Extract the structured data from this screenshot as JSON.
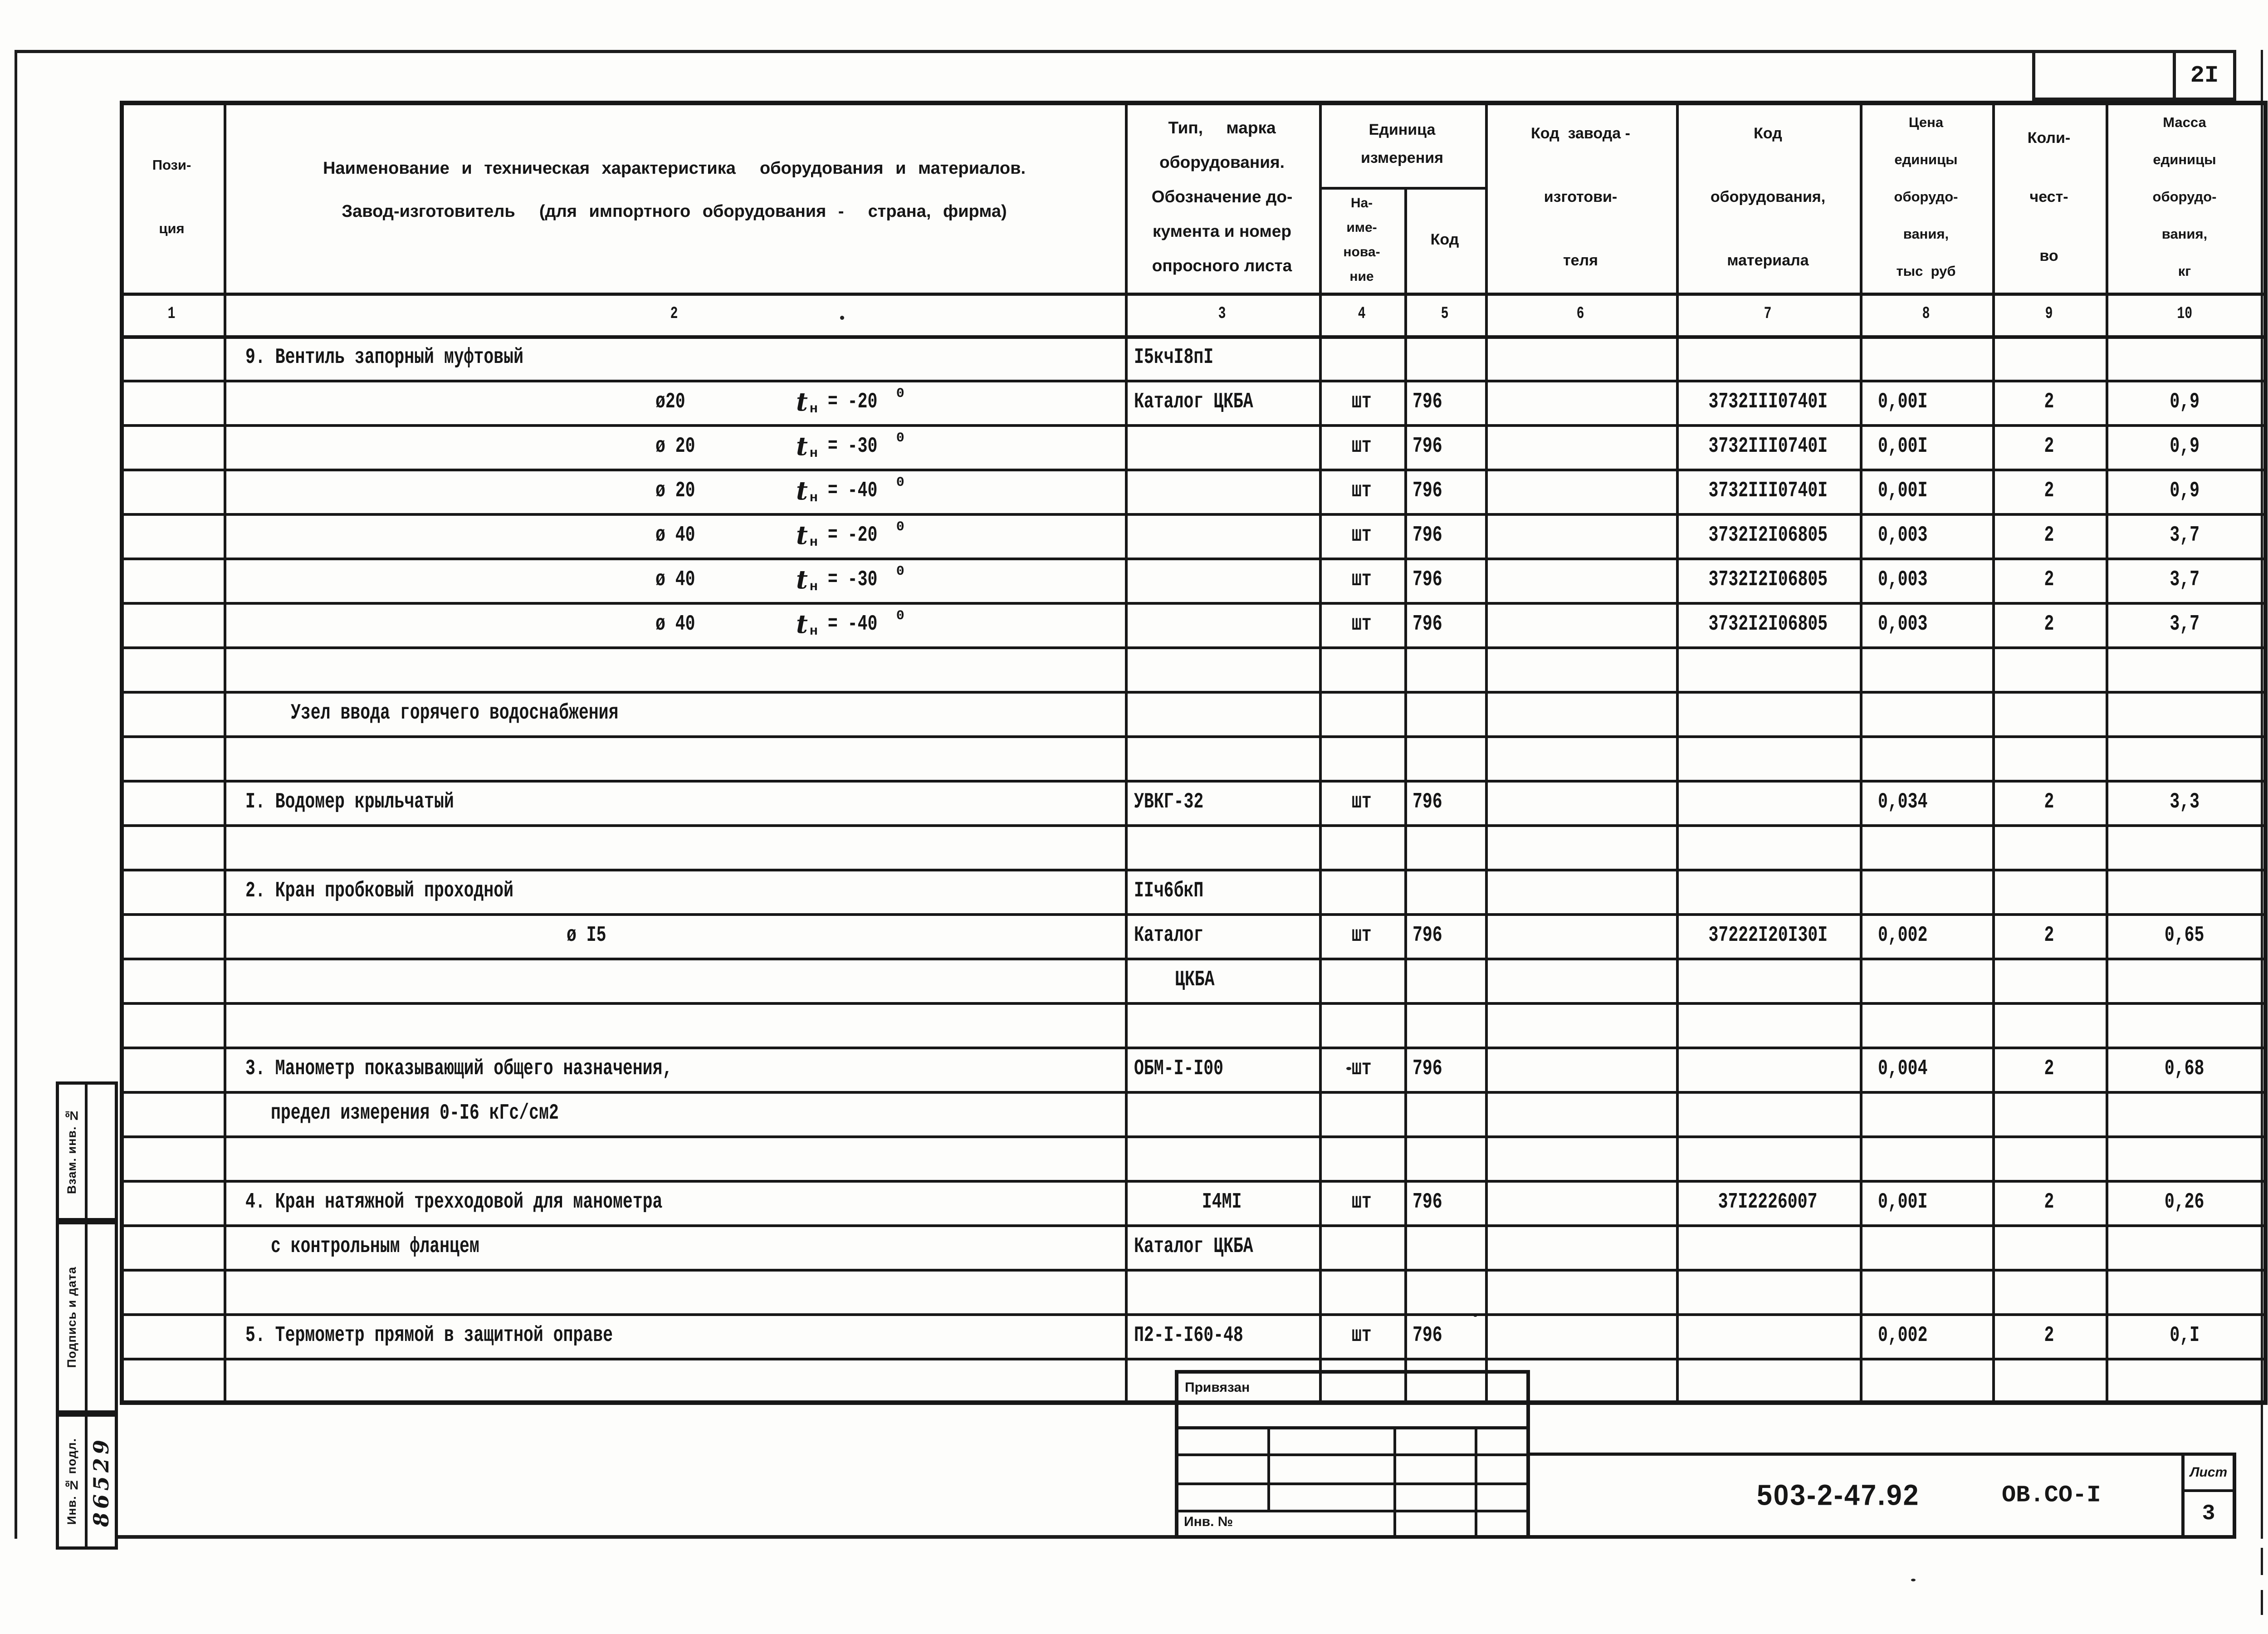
{
  "page": {
    "number": "2I"
  },
  "sidebar": {
    "box1": "Взам. инв. №",
    "box2": "Подпись и дата",
    "box3": "Инв. № подл.",
    "box3_value": "86529"
  },
  "stamp": {
    "title": "Привязан",
    "inv": "Инв. №",
    "doc_code": "503-2-47.92",
    "doc_name": "ОВ.СО-I",
    "sheet_label": "Лист",
    "sheet_number": "3"
  },
  "table": {
    "headers": {
      "c1": "Пози-\nция",
      "c2_line1": "Наименование и техническая характеристика  оборудования и материалов.",
      "c2_line2": "Завод-изготовитель  (для импортного оборудования -  страна, фирма)",
      "c3": "Тип,     марка\nоборудования.\nОбозначение до-\nкумента и номер\nопросного листа",
      "unit_group": "Единица\nизмерения",
      "c4": "На-\nиме-\nнова-\nние",
      "c5": "Код",
      "c6": "Код  завода -\nизготови-\nтеля",
      "c7": "Код\nоборудования,\nматериала",
      "c8": "Цена\nединицы\nоборудо-\nвания,\nтыс  руб",
      "c9": "Коли-\nчест-\nво",
      "c10": "Масса\nединицы\nоборудо-\nвания,\nкг"
    },
    "column_numbers": [
      "1",
      "2",
      "3",
      "4",
      "5",
      "6",
      "7",
      "8",
      "9",
      "10"
    ],
    "rows": [
      {
        "r": 0,
        "c2": "9. Вентиль запорный муфтовый",
        "c3": "I5кчI8пI"
      },
      {
        "r": 1,
        "dia": "ø20",
        "tvar": "t",
        "tsub": "н",
        "teq": " = -20",
        "deg": "0",
        "c3": "Каталог ЦКБА",
        "c4": "шт",
        "c5": "796",
        "c7": "3732III0740I",
        "c8": "0,00I",
        "c9": "2",
        "c10": "0,9"
      },
      {
        "r": 2,
        "dia": "ø 20",
        "tvar": "t",
        "tsub": "н",
        "teq": " = -30",
        "deg": "0",
        "c4": "шт",
        "c5": "796",
        "c7": "3732III0740I",
        "c8": "0,00I",
        "c9": "2",
        "c10": "0,9"
      },
      {
        "r": 3,
        "dia": "ø 20",
        "tvar": "t",
        "tsub": "н",
        "teq": " = -40",
        "deg": "0",
        "c4": "шт",
        "c5": "796",
        "c7": "3732III0740I",
        "c8": "0,00I",
        "c9": "2",
        "c10": "0,9"
      },
      {
        "r": 4,
        "dia": "ø 40",
        "tvar": "t",
        "tsub": "н",
        "teq": " = -20",
        "deg": "0",
        "c4": "шт",
        "c5": "796",
        "c7": "3732I2I06805",
        "c8": "0,003",
        "c9": "2",
        "c10": "3,7"
      },
      {
        "r": 5,
        "dia": "ø 40",
        "tvar": "t",
        "tsub": "н",
        "teq": " = -30",
        "deg": "0",
        "c4": "шт",
        "c5": "796",
        "c7": "3732I2I06805",
        "c8": "0,003",
        "c9": "2",
        "c10": "3,7"
      },
      {
        "r": 6,
        "dia": "ø 40",
        "tvar": "t",
        "tsub": "н",
        "teq": " = -40",
        "deg": "0",
        "c4": "шт",
        "c5": "796",
        "c7": "3732I2I06805",
        "c8": "0,003",
        "c9": "2",
        "c10": "3,7"
      },
      {
        "r": 8,
        "c2": "Узел ввода горячего водоснабжения",
        "c2_style": "section"
      },
      {
        "r": 10,
        "c2": "I. Водомер крыльчатый",
        "c3": "УВКГ-32",
        "c4": "шт",
        "c5": "796",
        "c8": "0,034",
        "c9": "2",
        "c10": "3,3"
      },
      {
        "r": 12,
        "c2": "2. Кран пробковый проходной",
        "c3": "IIч6бкП"
      },
      {
        "r": 13,
        "c2": "ø I5",
        "c2_style": "diaonly",
        "c3": "Каталог",
        "c4": "шт",
        "c5": "796",
        "c7": "37222I20I30I",
        "c8": "0,002",
        "c9": "2",
        "c10": "0,65"
      },
      {
        "r": 14,
        "c3": "ЦКБА",
        "c3_style": "indent"
      },
      {
        "r": 16,
        "c2": "3. Манометр показывающий общего назначения,",
        "c3": "ОБМ-I-I00",
        "c4": "шт",
        "c5": "796",
        "c8": "0,004",
        "c9": "2",
        "c10": "0,68"
      },
      {
        "r": 17,
        "c2": "предел измерения 0-I6 кГс/см2",
        "c2_style": "cont"
      },
      {
        "r": 19,
        "c2": "4. Кран натяжной трехходовой для манометра",
        "c3": "I4МI",
        "c3_style": "center",
        "c4": "шт",
        "c5": "796",
        "c7": "37I2226007",
        "c8": "0,00I",
        "c9": "2",
        "c10": "0,26"
      },
      {
        "r": 20,
        "c2": "с контрольным фланцем",
        "c2_style": "cont",
        "c3": "Каталог ЦКБА"
      },
      {
        "r": 22,
        "c2": "5. Термометр прямой в защитной оправе",
        "c3": "П2-I-I60-48",
        "c4": "шт",
        "c5": "796",
        "c8": "0,002",
        "c9": "2",
        "c10": "0,I"
      }
    ]
  }
}
